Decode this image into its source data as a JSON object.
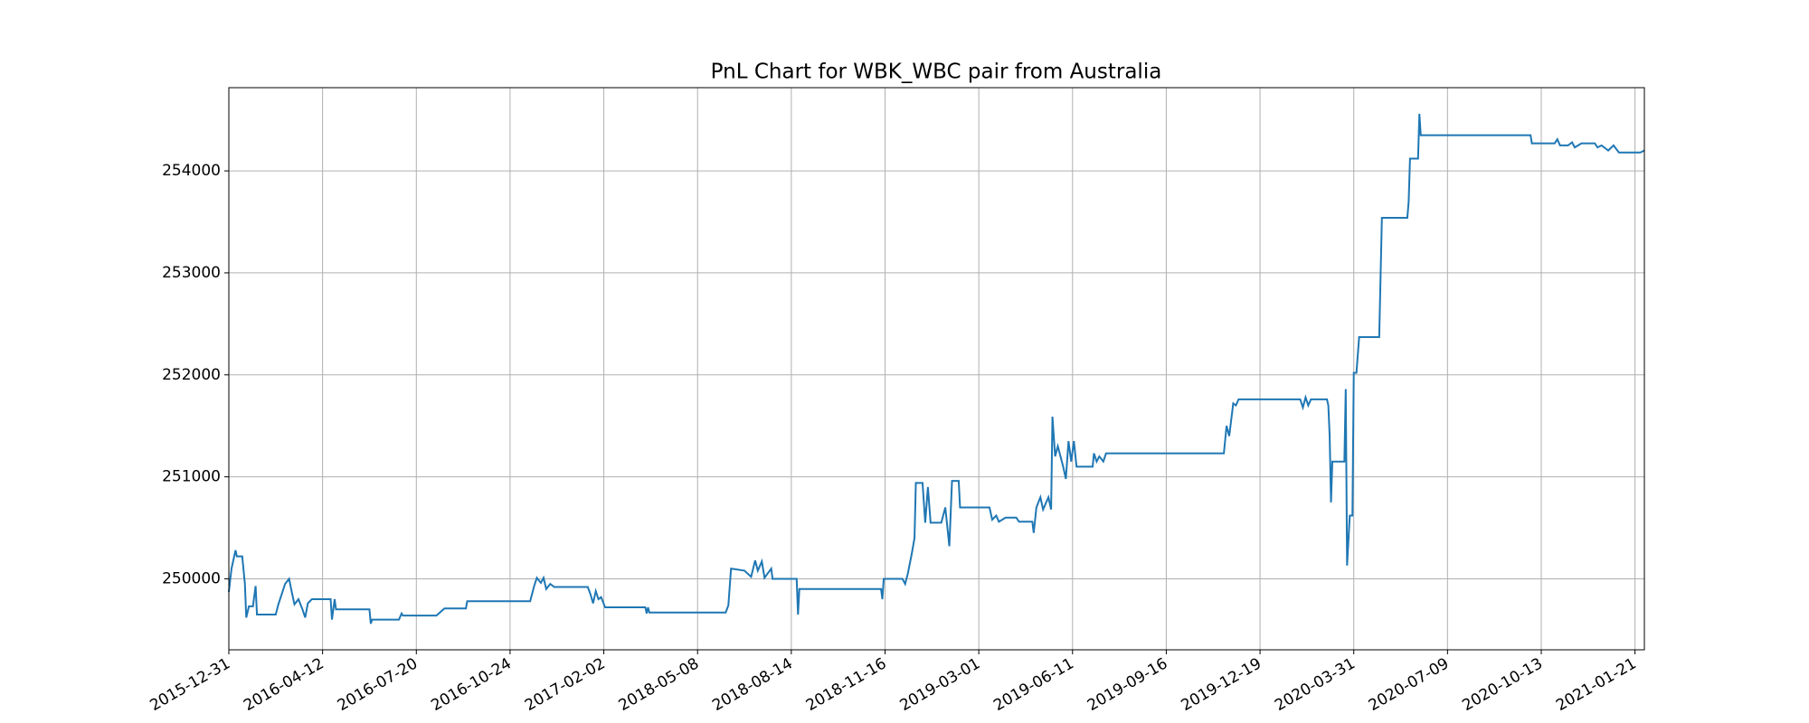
{
  "chart_data": {
    "type": "line",
    "title": "PnL Chart for WBK_WBC pair from Australia",
    "color": "#1f77b4",
    "grid": true,
    "x": [
      0,
      2,
      5,
      6,
      10,
      12,
      13,
      15,
      18,
      20,
      21,
      35,
      37,
      40,
      42,
      45,
      47,
      49,
      52,
      55,
      57,
      59,
      62,
      76,
      77,
      79,
      80,
      105,
      106,
      107,
      127,
      129,
      130,
      155,
      161,
      177,
      178,
      225,
      228,
      230,
      233,
      235,
      237,
      240,
      243,
      268,
      270,
      272,
      274,
      276,
      278,
      281,
      311,
      312,
      313,
      314,
      371,
      373,
      375,
      385,
      390,
      393,
      395,
      398,
      400,
      405,
      406,
      424,
      425,
      426,
      487,
      488,
      489,
      503,
      505,
      507,
      510,
      512,
      513,
      518,
      520,
      522,
      524,
      532,
      535,
      538,
      540,
      545,
      546,
      568,
      570,
      573,
      575,
      580,
      588,
      590,
      600,
      601,
      603,
      606,
      608,
      612,
      614,
      615,
      617,
      619,
      621,
      623,
      625,
      627,
      629,
      631,
      633,
      645,
      646,
      648,
      650,
      653,
      655,
      743,
      745,
      747,
      750,
      752,
      754,
      800,
      802,
      804,
      806,
      808,
      820,
      821,
      822,
      823,
      824,
      833,
      834,
      835,
      837,
      839,
      840,
      842,
      844,
      859,
      861,
      880,
      881,
      882,
      888,
      889,
      890,
      972,
      973,
      990,
      992,
      994,
      1000,
      1003,
      1005,
      1010,
      1020,
      1022,
      1025,
      1030,
      1034,
      1038,
      1054,
      1057
    ],
    "values": [
      249870,
      250100,
      250280,
      250220,
      250220,
      249950,
      249620,
      249730,
      249730,
      249930,
      249650,
      249650,
      249750,
      249870,
      249950,
      250000,
      249870,
      249750,
      249800,
      249700,
      249620,
      249760,
      249800,
      249800,
      249600,
      249800,
      249700,
      249700,
      249560,
      249600,
      249600,
      249660,
      249640,
      249640,
      249710,
      249710,
      249780,
      249780,
      249930,
      250010,
      249960,
      250010,
      249900,
      249950,
      249920,
      249920,
      249850,
      249760,
      249880,
      249800,
      249820,
      249720,
      249720,
      249660,
      249720,
      249670,
      249670,
      249740,
      250100,
      250080,
      250020,
      250180,
      250080,
      250170,
      250010,
      250100,
      250000,
      250000,
      249650,
      249900,
      249900,
      249800,
      250000,
      250000,
      249950,
      250050,
      250250,
      250400,
      250940,
      250940,
      250550,
      250900,
      250550,
      250550,
      250700,
      250320,
      250960,
      250960,
      250700,
      250700,
      250580,
      250620,
      250560,
      250600,
      250600,
      250560,
      250560,
      250450,
      250700,
      250800,
      250680,
      250800,
      250680,
      251590,
      251200,
      251300,
      251200,
      251100,
      250980,
      251350,
      251150,
      251350,
      251100,
      251100,
      251230,
      251150,
      251200,
      251150,
      251230,
      251230,
      251500,
      251400,
      251720,
      251700,
      251760,
      251760,
      251680,
      251780,
      251700,
      251760,
      251760,
      251700,
      251400,
      250750,
      251150,
      251150,
      251860,
      250130,
      250620,
      250620,
      252020,
      252020,
      252370,
      252370,
      253540,
      253540,
      253700,
      254120,
      254120,
      254560,
      254350,
      254350,
      254270,
      254270,
      254310,
      254250,
      254250,
      254280,
      254230,
      254270,
      254270,
      254230,
      254250,
      254200,
      254250,
      254180,
      254180,
      254200
    ],
    "xlim": [
      0,
      1057
    ],
    "xticks": [
      {
        "value": 0,
        "label": "2015-12-31"
      },
      {
        "value": 70,
        "label": "2016-04-12"
      },
      {
        "value": 140,
        "label": "2016-07-20"
      },
      {
        "value": 210,
        "label": "2016-10-24"
      },
      {
        "value": 280,
        "label": "2017-02-02"
      },
      {
        "value": 350,
        "label": "2018-05-08"
      },
      {
        "value": 420,
        "label": "2018-08-14"
      },
      {
        "value": 490,
        "label": "2018-11-16"
      },
      {
        "value": 560,
        "label": "2019-03-01"
      },
      {
        "value": 630,
        "label": "2019-06-11"
      },
      {
        "value": 700,
        "label": "2019-09-16"
      },
      {
        "value": 770,
        "label": "2019-12-19"
      },
      {
        "value": 840,
        "label": "2020-03-31"
      },
      {
        "value": 910,
        "label": "2020-07-09"
      },
      {
        "value": 980,
        "label": "2020-10-13"
      },
      {
        "value": 1050,
        "label": "2021-01-21"
      }
    ],
    "ylim": [
      249304,
      254816
    ],
    "yticks": [
      250000,
      251000,
      252000,
      253000,
      254000
    ]
  }
}
